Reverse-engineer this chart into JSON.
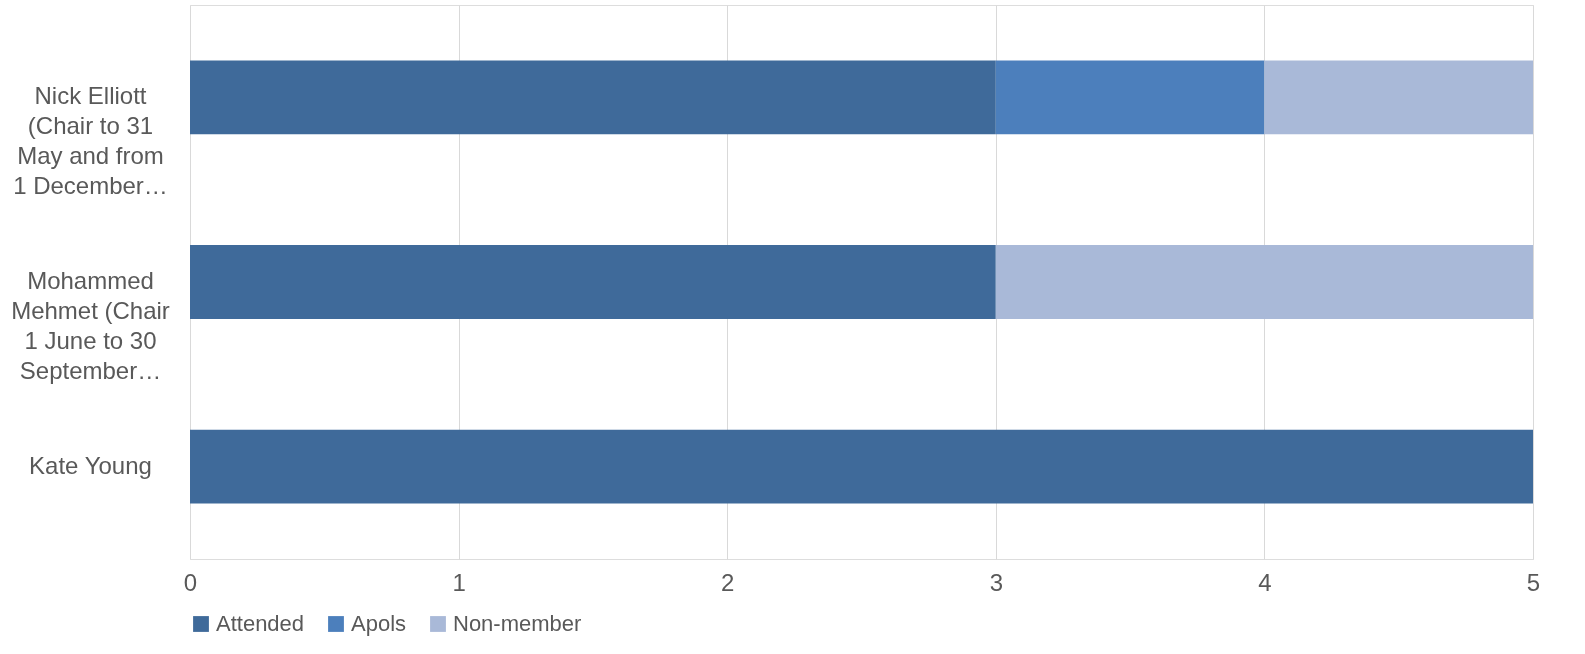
{
  "chart_data": {
    "type": "bar",
    "orientation": "horizontal",
    "stacked": true,
    "categories": [
      "Nick Elliott (Chair to 31 May and from 1 December…",
      "Mohammed Mehmet (Chair 1 June to 30 September…",
      "Kate Young"
    ],
    "series": [
      {
        "name": "Attended",
        "color": "#3f6a9a",
        "values": [
          3,
          3,
          5
        ]
      },
      {
        "name": "Apols",
        "color": "#4c7fbc",
        "values": [
          1,
          0,
          0
        ]
      },
      {
        "name": "Non-member",
        "color": "#a9b9d8",
        "values": [
          1,
          2,
          0
        ]
      }
    ],
    "xlim": [
      0,
      5
    ],
    "xticks": [
      0,
      1,
      2,
      3,
      4,
      5
    ],
    "grid": "x",
    "legend": "bottom"
  }
}
